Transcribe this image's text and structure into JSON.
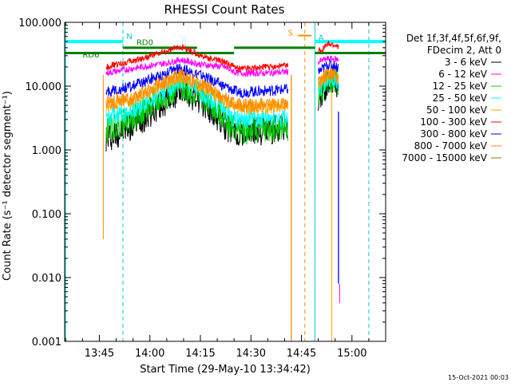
{
  "chart_data": {
    "type": "line",
    "title": "RHESSI Count Rates",
    "xlabel": "Start Time (29-May-10 13:34:42)",
    "ylabel": "Count Rate (s⁻¹ detector segment⁻¹)",
    "yscale": "log",
    "ylim": [
      0.001,
      100
    ],
    "xlim": [
      "13:34:42",
      "15:10:00"
    ],
    "grid": false,
    "legend_position": "right",
    "date_stamp": "15-Oct-2021 00:03",
    "y_ticks": [
      "0.001",
      "0.010",
      "0.100",
      "1.000",
      "10.000",
      "100.000"
    ],
    "y_tick_values": [
      0.001,
      0.01,
      0.1,
      1,
      10,
      100
    ],
    "x_ticks": [
      "13:45",
      "14:00",
      "14:15",
      "14:30",
      "14:45",
      "15:00"
    ],
    "legend_header": [
      "Det 1f,3f,4f,5f,6f,9f,",
      "FDecim 2, Att 0"
    ],
    "series": [
      {
        "name": "3 - 6 keV",
        "color": "#000000",
        "x": [
          "13:47",
          "13:55",
          "14:05",
          "14:09",
          "14:15",
          "14:22",
          "14:26",
          "14:35",
          "14:42",
          "14:51",
          "14:53",
          "14:56"
        ],
        "y": [
          1.5,
          2.5,
          6,
          9,
          6,
          2.5,
          1.8,
          2.0,
          2.2,
          8,
          12,
          10
        ]
      },
      {
        "name": "6 - 12 keV",
        "color": "#ff00ff",
        "x": [
          "13:47",
          "13:55",
          "14:05",
          "14:09",
          "14:15",
          "14:22",
          "14:26",
          "14:35",
          "14:42",
          "14:51",
          "14:53",
          "14:56"
        ],
        "y": [
          16,
          19,
          23,
          26,
          22,
          20,
          16,
          16,
          17,
          25,
          27,
          26
        ]
      },
      {
        "name": "12 - 25 keV",
        "color": "#00cc00",
        "x": [
          "13:47",
          "13:55",
          "14:05",
          "14:09",
          "14:15",
          "14:22",
          "14:26",
          "14:35",
          "14:42",
          "14:51",
          "14:53",
          "14:56"
        ],
        "y": [
          2.0,
          3.2,
          7,
          10,
          7,
          3.2,
          2.0,
          2.1,
          2.3,
          9,
          13,
          11
        ]
      },
      {
        "name": "25 - 50 keV",
        "color": "#00ffff",
        "x": [
          "13:47",
          "13:55",
          "14:05",
          "14:09",
          "14:15",
          "14:22",
          "14:26",
          "14:35",
          "14:42",
          "14:51",
          "14:53",
          "14:56"
        ],
        "y": [
          3.2,
          4.2,
          9,
          12,
          8,
          4.2,
          3.0,
          3.1,
          3.3,
          10,
          14,
          12
        ]
      },
      {
        "name": "50 - 100 keV",
        "color": "#ffa500",
        "x": [
          "13:47",
          "13:55",
          "14:05",
          "14:09",
          "14:15",
          "14:22",
          "14:26",
          "14:35",
          "14:42",
          "14:51",
          "14:53",
          "14:56"
        ],
        "y": [
          5.0,
          6.0,
          11,
          14,
          10,
          6.0,
          4.5,
          4.7,
          5.0,
          12,
          15,
          13
        ]
      },
      {
        "name": "100 - 300 keV",
        "color": "#ff0000",
        "x": [
          "13:47",
          "13:55",
          "14:05",
          "14:09",
          "14:15",
          "14:22",
          "14:26",
          "14:35",
          "14:42",
          "14:51",
          "14:53",
          "14:56"
        ],
        "y": [
          20,
          25,
          35,
          42,
          30,
          24,
          19,
          20,
          21,
          38,
          45,
          42
        ]
      },
      {
        "name": "300 - 800 keV",
        "color": "#0000ff",
        "x": [
          "13:47",
          "13:55",
          "14:05",
          "14:09",
          "14:15",
          "14:22",
          "14:26",
          "14:35",
          "14:42",
          "14:51",
          "14:53",
          "14:56"
        ],
        "y": [
          8,
          10,
          16,
          19,
          15,
          10,
          8,
          8.5,
          9,
          18,
          22,
          20
        ]
      },
      {
        "name": "800 - 7000 keV",
        "color": "#ff8c00",
        "x": [
          "13:47",
          "13:55",
          "14:05",
          "14:09",
          "14:15",
          "14:22",
          "14:26",
          "14:35",
          "14:42",
          "14:51",
          "14:53",
          "14:56"
        ],
        "y": [
          5.5,
          6.5,
          12,
          15,
          11,
          6.5,
          5.0,
          5.2,
          5.5,
          13,
          16,
          14
        ]
      },
      {
        "name": "7000 - 15000 keV",
        "color": "#808000",
        "x": [],
        "y": []
      }
    ],
    "annotations": [
      {
        "text": "N",
        "color": "#00cccc"
      },
      {
        "text": "RD0",
        "color": "#008000"
      },
      {
        "text": "RD6",
        "color": "#008000"
      },
      {
        "text": "S",
        "color": "#ff8c00"
      },
      {
        "text": "A",
        "color": "#00cccc"
      }
    ],
    "vertical_lines": [
      {
        "time": "13:52",
        "color": "#00cccc",
        "style": "dashed"
      },
      {
        "time": "14:46",
        "color": "#ff8c00",
        "style": "dashed"
      },
      {
        "time": "14:49",
        "color": "#00cccc",
        "style": "solid"
      },
      {
        "time": "15:05",
        "color": "#00cccc",
        "style": "dashed"
      }
    ]
  }
}
